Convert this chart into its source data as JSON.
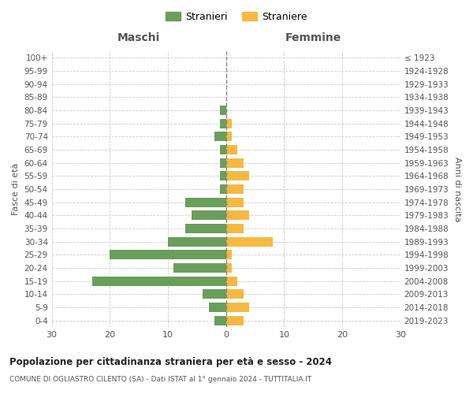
{
  "age_groups": [
    "0-4",
    "5-9",
    "10-14",
    "15-19",
    "20-24",
    "25-29",
    "30-34",
    "35-39",
    "40-44",
    "45-49",
    "50-54",
    "55-59",
    "60-64",
    "65-69",
    "70-74",
    "75-79",
    "80-84",
    "85-89",
    "90-94",
    "95-99",
    "100+"
  ],
  "birth_years": [
    "2019-2023",
    "2014-2018",
    "2009-2013",
    "2004-2008",
    "1999-2003",
    "1994-1998",
    "1989-1993",
    "1984-1988",
    "1979-1983",
    "1974-1978",
    "1969-1973",
    "1964-1968",
    "1959-1963",
    "1954-1958",
    "1949-1953",
    "1944-1948",
    "1939-1943",
    "1934-1938",
    "1929-1933",
    "1924-1928",
    "≤ 1923"
  ],
  "maschi": [
    2,
    3,
    4,
    23,
    9,
    20,
    10,
    7,
    6,
    7,
    1,
    1,
    1,
    1,
    2,
    1,
    1,
    0,
    0,
    0,
    0
  ],
  "femmine": [
    3,
    4,
    3,
    2,
    1,
    1,
    8,
    3,
    4,
    3,
    3,
    4,
    3,
    2,
    1,
    1,
    0,
    0,
    0,
    0,
    0
  ],
  "maschi_color": "#6a9e5b",
  "femmine_color": "#f5b942",
  "title": "Popolazione per cittadinanza straniera per età e sesso - 2024",
  "subtitle": "COMUNE DI OGLIASTRO CILENTO (SA) - Dati ISTAT al 1° gennaio 2024 - TUTTITALIA.IT",
  "xlabel_left": "Maschi",
  "xlabel_right": "Femmine",
  "ylabel_left": "Fasce di età",
  "ylabel_right": "Anni di nascita",
  "legend_maschi": "Stranieri",
  "legend_femmine": "Straniere",
  "xlim": 30,
  "background_color": "#ffffff",
  "grid_color": "#cccccc"
}
